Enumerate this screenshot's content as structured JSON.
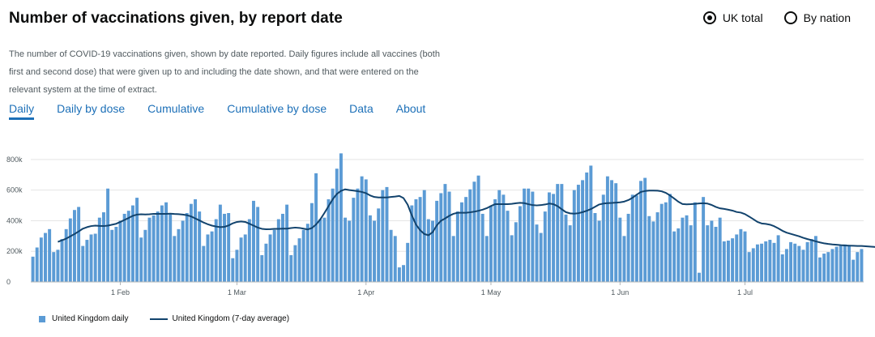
{
  "header": {
    "title": "Number of vaccinations given, by report date",
    "radio_options": [
      {
        "label": "UK total",
        "selected": true
      },
      {
        "label": "By nation",
        "selected": false
      }
    ]
  },
  "description": "The number of COVID-19 vaccinations given, shown by date reported. Daily figures include all vaccines (both first and second dose) that were given up to and including the date shown, and that were entered on the relevant system at the time of extract.",
  "tabs": [
    {
      "label": "Daily",
      "active": true
    },
    {
      "label": "Daily by dose",
      "active": false
    },
    {
      "label": "Cumulative",
      "active": false
    },
    {
      "label": "Cumulative by dose",
      "active": false
    },
    {
      "label": "Data",
      "active": false
    },
    {
      "label": "About",
      "active": false
    }
  ],
  "colors": {
    "bar": "#5b9bd5",
    "line": "#12436d",
    "accent": "#1d70b8"
  },
  "chart_data": {
    "type": "bar",
    "x_start": "2021-01-11",
    "x_tick_labels": [
      "1 Feb",
      "1 Mar",
      "1 Apr",
      "1 May",
      "1 Jun",
      "1 Jul"
    ],
    "x_tick_dates": [
      "2021-02-01",
      "2021-03-01",
      "2021-04-01",
      "2021-05-01",
      "2021-06-01",
      "2021-07-01"
    ],
    "y_ticks": [
      0,
      200000,
      400000,
      600000,
      800000
    ],
    "y_tick_labels": [
      "0",
      "200k",
      "400k",
      "600k",
      "800k"
    ],
    "ylim": [
      0,
      900000
    ],
    "grid": true,
    "legend_position": "bottom-left",
    "series": [
      {
        "name": "United Kingdom daily",
        "kind": "bar",
        "values": [
          165000,
          225000,
          290000,
          320000,
          345000,
          195000,
          210000,
          280000,
          345000,
          415000,
          470000,
          490000,
          235000,
          275000,
          310000,
          315000,
          420000,
          455000,
          610000,
          340000,
          360000,
          400000,
          445000,
          465000,
          500000,
          550000,
          290000,
          340000,
          420000,
          435000,
          460000,
          500000,
          520000,
          440000,
          300000,
          345000,
          400000,
          450000,
          510000,
          540000,
          460000,
          235000,
          310000,
          330000,
          410000,
          505000,
          445000,
          450000,
          155000,
          210000,
          290000,
          310000,
          410000,
          530000,
          490000,
          175000,
          250000,
          310000,
          340000,
          410000,
          445000,
          505000,
          175000,
          240000,
          285000,
          340000,
          380000,
          515000,
          710000,
          410000,
          420000,
          540000,
          610000,
          740000,
          840000,
          420000,
          400000,
          550000,
          610000,
          690000,
          670000,
          435000,
          400000,
          480000,
          600000,
          620000,
          340000,
          300000,
          95000,
          110000,
          255000,
          500000,
          540000,
          555000,
          600000,
          410000,
          400000,
          530000,
          580000,
          640000,
          590000,
          300000,
          460000,
          520000,
          555000,
          605000,
          655000,
          695000,
          445000,
          300000,
          495000,
          540000,
          600000,
          570000,
          465000,
          305000,
          390000,
          495000,
          610000,
          610000,
          590000,
          375000,
          320000,
          460000,
          585000,
          575000,
          640000,
          640000,
          440000,
          370000,
          600000,
          635000,
          665000,
          715000,
          760000,
          450000,
          400000,
          570000,
          690000,
          665000,
          645000,
          420000,
          300000,
          445000,
          570000,
          565000,
          660000,
          680000,
          430000,
          395000,
          455000,
          510000,
          520000,
          575000,
          330000,
          350000,
          420000,
          435000,
          370000,
          520000,
          60000,
          555000,
          370000,
          400000,
          360000,
          420000,
          265000,
          270000,
          285000,
          310000,
          345000,
          330000,
          195000,
          220000,
          245000,
          250000,
          265000,
          275000,
          255000,
          305000,
          180000,
          215000,
          260000,
          250000,
          235000,
          210000,
          260000,
          280000,
          300000,
          160000,
          185000,
          195000,
          215000,
          230000,
          235000,
          245000,
          240000,
          145000,
          195000,
          215000
        ]
      },
      {
        "name": "United Kingdom (7-day average)",
        "kind": "line",
        "values": [
          262000,
          272000,
          283000,
          298000,
          313000,
          330000,
          348000,
          358000,
          365000,
          368000,
          366000,
          365000,
          368000,
          374000,
          380000,
          392000,
          405000,
          418000,
          432000,
          440000,
          442000,
          441000,
          442000,
          445000,
          445000,
          445000,
          445000,
          446000,
          444000,
          443000,
          440000,
          436000,
          428000,
          415000,
          402000,
          388000,
          377000,
          368000,
          362000,
          358000,
          360000,
          369000,
          383000,
          392000,
          395000,
          392000,
          380000,
          368000,
          355000,
          347000,
          344000,
          345000,
          347000,
          347000,
          348000,
          348000,
          352000,
          355000,
          353000,
          348000,
          343000,
          352000,
          375000,
          408000,
          450000,
          495000,
          540000,
          575000,
          595000,
          605000,
          600000,
          597000,
          593000,
          588000,
          580000,
          565000,
          555000,
          552000,
          552000,
          552000,
          555000,
          558000,
          562000,
          548000,
          505000,
          435000,
          375000,
          338000,
          313000,
          305000,
          325000,
          370000,
          400000,
          415000,
          432000,
          445000,
          452000,
          452000,
          452000,
          455000,
          459000,
          465000,
          472000,
          482000,
          496000,
          508000,
          508000,
          508000,
          508000,
          510000,
          514000,
          517000,
          515000,
          508000,
          502000,
          500000,
          502000,
          506000,
          512000,
          508000,
          495000,
          475000,
          456000,
          448000,
          446000,
          449000,
          456000,
          465000,
          476000,
          491000,
          506000,
          512000,
          515000,
          516000,
          518000,
          520000,
          525000,
          535000,
          550000,
          570000,
          588000,
          594000,
          597000,
          597000,
          596000,
          592000,
          582000,
          565000,
          545000,
          524000,
          509000,
          507000,
          508000,
          510000,
          513000,
          514000,
          512000,
          503000,
          490000,
          481000,
          477000,
          472000,
          466000,
          457000,
          453000,
          443000,
          427000,
          410000,
          392000,
          382000,
          379000,
          374000,
          364000,
          350000,
          334000,
          322000,
          314000,
          306000,
          298000,
          288000,
          280000,
          273000,
          265000,
          258000,
          252000,
          248000,
          245000,
          243000,
          240000,
          238000,
          237000,
          236000,
          235000,
          235000,
          233000,
          231000,
          229000,
          226000,
          223000,
          220000,
          218000,
          218000,
          217000,
          216000
        ]
      }
    ]
  }
}
